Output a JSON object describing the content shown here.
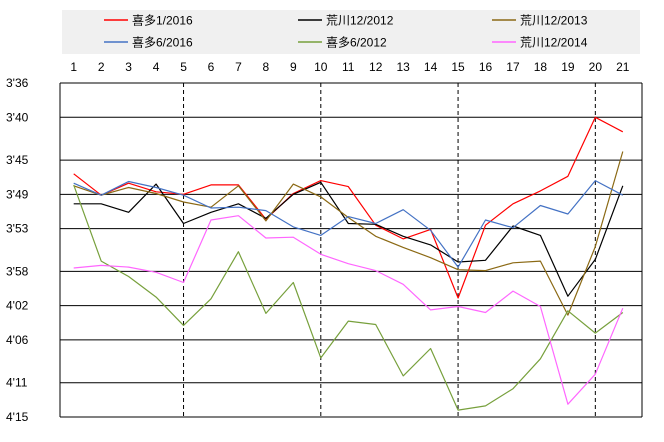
{
  "chart_data": {
    "type": "line",
    "x": [
      1,
      2,
      3,
      4,
      5,
      6,
      7,
      8,
      9,
      10,
      11,
      12,
      13,
      14,
      15,
      16,
      17,
      18,
      19,
      20,
      21
    ],
    "x_tick_labels": [
      "1",
      "2",
      "3",
      "4",
      "5",
      "6",
      "7",
      "8",
      "9",
      "10",
      "11",
      "12",
      "13",
      "14",
      "15",
      "16",
      "17",
      "18",
      "19",
      "20",
      "21"
    ],
    "y_tick_labels": [
      "3'36",
      "3'40",
      "3'45",
      "3'49",
      "3'53",
      "3'58",
      "4'02",
      "4'06",
      "4'11",
      "4'15"
    ],
    "y_ticks_seconds": [
      216,
      220,
      225,
      229,
      233,
      238,
      242,
      246,
      251,
      255
    ],
    "ylim_seconds": [
      216,
      255
    ],
    "y_inverted": true,
    "x_axis_position": "top",
    "legend_position": "top",
    "vertical_dashed_lines_at": [
      5,
      10,
      15,
      20
    ],
    "grid": "horizontal",
    "series": [
      {
        "name": "喜多1/2016",
        "color": "#ff0000",
        "values": [
          226.6,
          229.1,
          227.7,
          228.7,
          229.0,
          227.9,
          227.9,
          231.9,
          228.9,
          227.4,
          228.1,
          232.6,
          234.2,
          233.1,
          241.1,
          232.6,
          230.1,
          228.6,
          226.9,
          220.0,
          221.7
        ]
      },
      {
        "name": "荒川12/2012",
        "color": "#000000",
        "values": [
          230.1,
          230.1,
          231.1,
          227.8,
          232.4,
          231.1,
          230.1,
          231.8,
          229.0,
          227.6,
          232.4,
          232.5,
          233.9,
          234.9,
          236.9,
          236.7,
          232.7,
          233.8,
          240.9,
          236.6,
          228.0
        ]
      },
      {
        "name": "荒川12/2013",
        "color": "#8b6914",
        "values": [
          228.0,
          229.1,
          228.2,
          228.9,
          229.9,
          230.5,
          228.0,
          232.1,
          227.8,
          229.3,
          231.7,
          233.9,
          235.2,
          236.4,
          237.8,
          237.9,
          237.0,
          236.8,
          243.1,
          235.1,
          224.0
        ]
      },
      {
        "name": "喜多6/2016",
        "color": "#4472c4",
        "values": [
          227.7,
          229.1,
          227.5,
          228.2,
          229.1,
          230.6,
          230.5,
          230.9,
          232.8,
          233.8,
          231.6,
          232.4,
          230.8,
          233.2,
          237.5,
          232.0,
          232.9,
          230.3,
          231.3,
          227.4,
          229.1
        ]
      },
      {
        "name": "喜多6/2012",
        "color": "#77a03c",
        "values": [
          227.9,
          236.8,
          238.6,
          241.0,
          244.3,
          241.2,
          235.7,
          242.9,
          239.3,
          248.1,
          243.8,
          244.2,
          250.2,
          247.0,
          254.2,
          253.7,
          251.7,
          248.2,
          242.6,
          245.2,
          242.8
        ]
      },
      {
        "name": "荒川12/2014",
        "color": "#ff66ff",
        "values": [
          237.6,
          237.3,
          237.5,
          238.1,
          239.3,
          232.0,
          231.5,
          234.1,
          234.0,
          236.0,
          237.1,
          237.9,
          239.5,
          242.5,
          242.1,
          242.8,
          240.3,
          242.1,
          253.5,
          250.0,
          242.3
        ]
      }
    ]
  }
}
